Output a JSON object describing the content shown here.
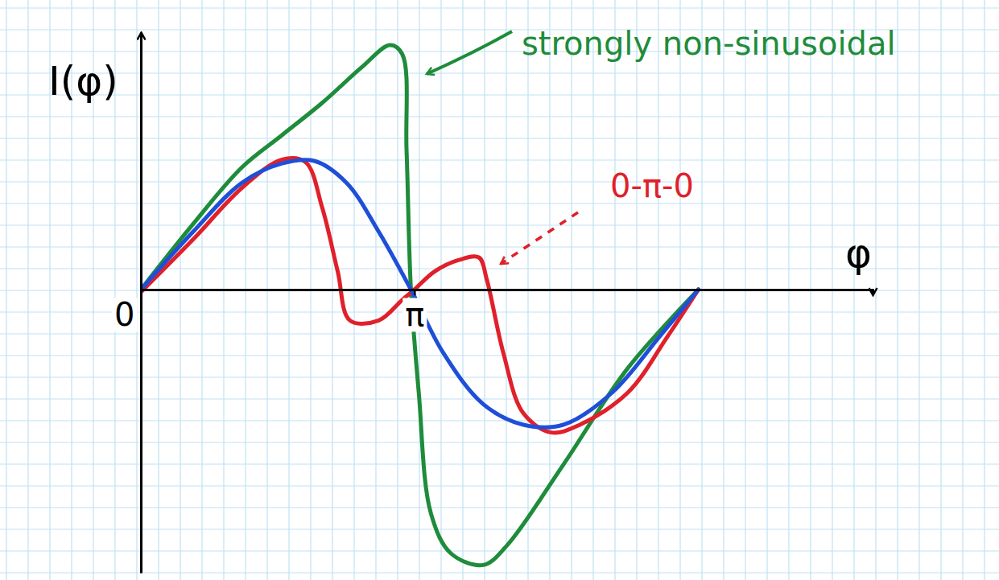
{
  "chart_data": {
    "type": "line",
    "x_label": "φ",
    "y_label": "I(φ)",
    "xlim": [
      0,
      8.4
    ],
    "ylim": [
      -2.2,
      2.0
    ],
    "xticks": [
      0,
      {
        "value": 3.14,
        "label": "π"
      }
    ],
    "yticks": [],
    "tick_labels": "x",
    "annotations": [
      {
        "text": "strongly non-sinusoidal",
        "color": "#1e8c3a"
      },
      {
        "text": "0-π-0",
        "color": "#e0202a"
      }
    ],
    "series": [
      {
        "color": "#1e8c3a",
        "x": [
          0,
          0.6,
          1.16,
          1.62,
          2.08,
          2.54,
          2.86,
          3.0,
          3.05,
          3.1,
          3.19,
          3.33,
          3.56,
          3.93,
          4.2,
          4.85,
          5.59,
          6.4
        ],
        "values": [
          0,
          0.51,
          0.95,
          1.2,
          1.45,
          1.73,
          1.9,
          1.83,
          1.08,
          0,
          -0.8,
          -1.74,
          -2.05,
          -2.14,
          -1.99,
          -1.36,
          -0.61,
          0
        ]
      },
      {
        "color": "#e0202a",
        "x": [
          0,
          0.6,
          1.16,
          1.62,
          1.89,
          2.08,
          2.26,
          2.4,
          2.73,
          3.0,
          3.14,
          3.37,
          3.65,
          3.88,
          3.97,
          4.16,
          4.39,
          4.71,
          5.04,
          5.59,
          6.05,
          6.4
        ],
        "values": [
          -0.02,
          0.39,
          0.79,
          1.01,
          0.99,
          0.64,
          0.14,
          -0.24,
          -0.24,
          -0.08,
          0,
          0.14,
          0.23,
          0.25,
          0.08,
          -0.49,
          -0.96,
          -1.11,
          -1.05,
          -0.8,
          -0.36,
          0
        ]
      },
      {
        "color": "#1f4fd8",
        "x": [
          0,
          0.6,
          1.16,
          1.62,
          1.99,
          2.36,
          2.73,
          3.1,
          3.47,
          3.93,
          4.39,
          4.85,
          5.41,
          5.96,
          6.4
        ],
        "values": [
          0,
          0.45,
          0.83,
          0.98,
          1.0,
          0.83,
          0.45,
          0,
          -0.49,
          -0.89,
          -1.05,
          -1.05,
          -0.8,
          -0.36,
          0
        ]
      }
    ]
  }
}
